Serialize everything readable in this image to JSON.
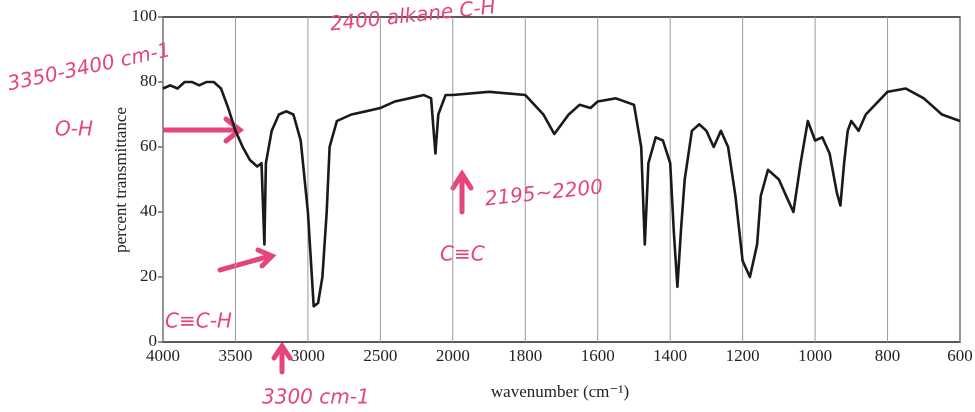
{
  "chart_data": {
    "type": "line",
    "ylabel": "percent transmittance",
    "xlabel": "wavenumber (cm⁻¹)",
    "x": [
      4000,
      3950,
      3900,
      3850,
      3800,
      3750,
      3700,
      3650,
      3600,
      3550,
      3500,
      3450,
      3400,
      3350,
      3320,
      3300,
      3290,
      3250,
      3200,
      3150,
      3100,
      3050,
      3000,
      2960,
      2930,
      2900,
      2870,
      2850,
      2800,
      2700,
      2600,
      2500,
      2400,
      2300,
      2200,
      2150,
      2120,
      2100,
      2050,
      2000,
      1900,
      1800,
      1750,
      1720,
      1680,
      1650,
      1620,
      1600,
      1550,
      1500,
      1480,
      1470,
      1460,
      1440,
      1420,
      1400,
      1390,
      1380,
      1370,
      1360,
      1340,
      1320,
      1300,
      1280,
      1260,
      1240,
      1220,
      1200,
      1180,
      1160,
      1150,
      1130,
      1100,
      1080,
      1060,
      1040,
      1020,
      1000,
      980,
      960,
      940,
      930,
      920,
      910,
      900,
      880,
      860,
      800,
      750,
      700,
      650,
      600
    ],
    "series": [
      {
        "color": "#1a1a1a",
        "values": [
          78,
          79,
          78,
          80,
          80,
          79,
          80,
          80,
          78,
          72,
          65,
          60,
          56,
          54,
          55,
          30,
          55,
          65,
          70,
          71,
          70,
          62,
          40,
          11,
          12,
          20,
          40,
          60,
          68,
          70,
          71,
          72,
          74,
          75,
          76,
          75,
          58,
          70,
          76,
          76,
          77,
          76,
          70,
          64,
          70,
          73,
          72,
          74,
          75,
          73,
          60,
          30,
          55,
          63,
          62,
          55,
          34,
          17,
          35,
          50,
          65,
          67,
          65,
          60,
          65,
          60,
          45,
          25,
          20,
          30,
          45,
          53,
          50,
          45,
          40,
          55,
          68,
          62,
          63,
          58,
          46,
          42,
          55,
          65,
          68,
          65,
          70,
          77,
          78,
          75,
          70,
          68
        ]
      }
    ],
    "xlim": [
      4000,
      600
    ],
    "ylim": [
      0,
      100
    ],
    "xticks": [
      4000,
      3500,
      3000,
      2500,
      2000,
      1800,
      1600,
      1400,
      1200,
      1000,
      800,
      600
    ],
    "yticks": [
      0,
      20,
      40,
      60,
      80,
      100
    ],
    "grid": true,
    "annotations": [
      "3350-3400 cm-1",
      "2400 alkane C-H",
      "O-H",
      "C≡C-H",
      "3300 cm-1",
      "C≡C",
      "2195~2200"
    ]
  }
}
